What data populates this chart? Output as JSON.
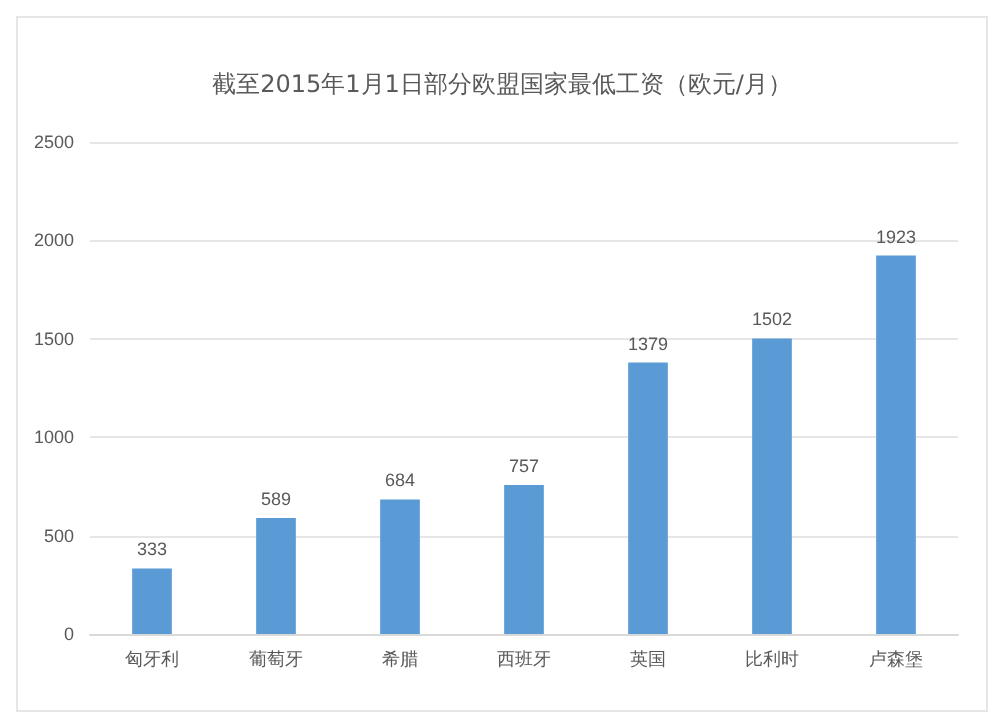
{
  "chart_data": {
    "type": "bar",
    "title": "截至2015年1月1日部分欧盟国家最低工资（欧元/月）",
    "categories": [
      "匈牙利",
      "葡萄牙",
      "希腊",
      "西班牙",
      "英国",
      "比利时",
      "卢森堡"
    ],
    "values": [
      333,
      589,
      684,
      757,
      1379,
      1502,
      1923
    ],
    "color": "#5b9bd5",
    "ylim": [
      0,
      2500
    ],
    "yticks": [
      0,
      500,
      1000,
      1500,
      2000,
      2500
    ],
    "grid": "y",
    "data_labels": true
  }
}
